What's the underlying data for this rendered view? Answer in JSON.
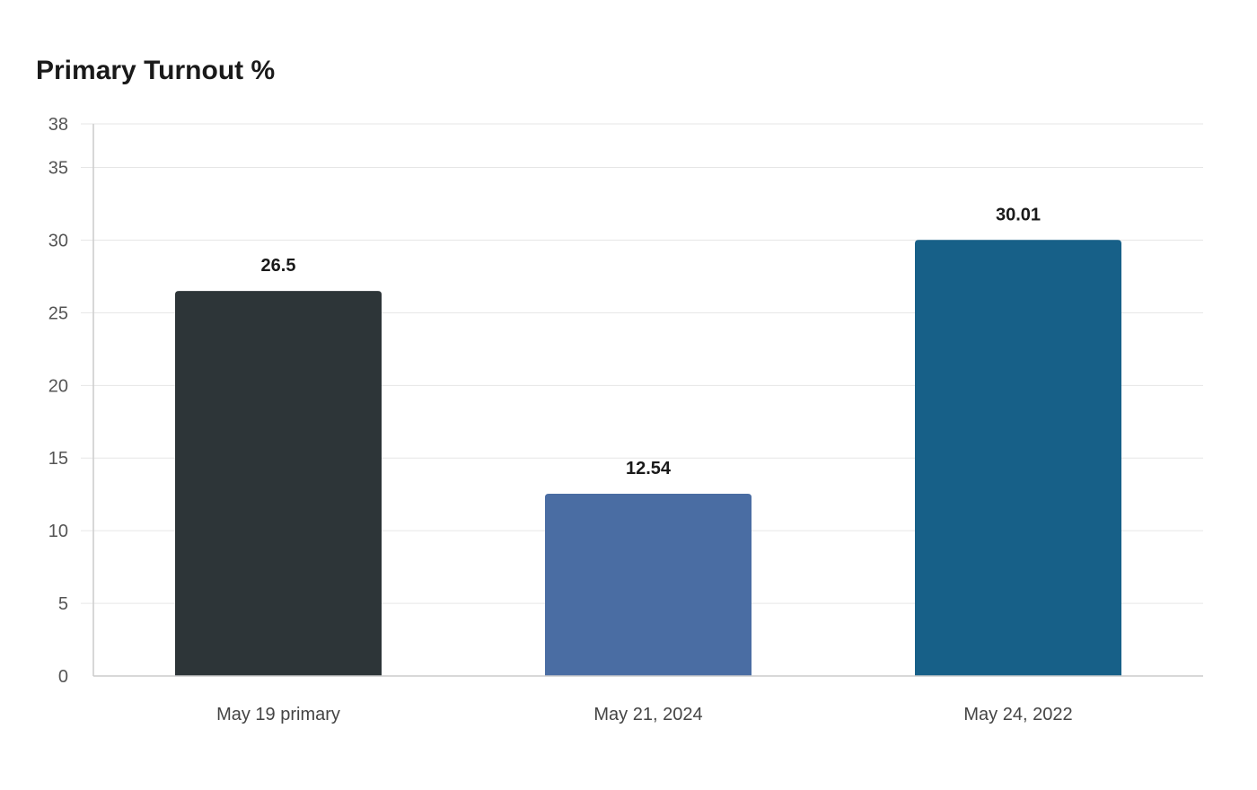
{
  "chart_data": {
    "type": "bar",
    "title": "Primary Turnout %",
    "xlabel": "",
    "ylabel": "",
    "categories": [
      "May 19 primary",
      "May 21, 2024",
      "May 24, 2022"
    ],
    "values": [
      26.5,
      12.54,
      30.01
    ],
    "data_labels": [
      "26.5",
      "12.54",
      "30.01"
    ],
    "colors": [
      "#2d3538",
      "#4a6da3",
      "#176088"
    ],
    "ylim": [
      0,
      38
    ],
    "yticks": [
      0,
      5,
      10,
      15,
      20,
      25,
      30,
      35,
      38
    ],
    "grid": true,
    "legend": "none"
  }
}
